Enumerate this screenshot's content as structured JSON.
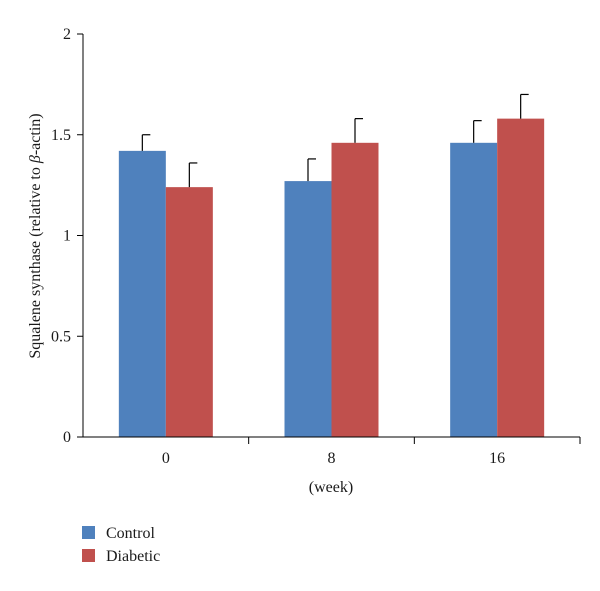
{
  "chart_data": {
    "type": "bar",
    "categories": [
      "0",
      "8",
      "16"
    ],
    "series": [
      {
        "name": "Control",
        "values": [
          1.42,
          1.27,
          1.46
        ],
        "errors": [
          0.08,
          0.11,
          0.11
        ],
        "color": "#4f81bd"
      },
      {
        "name": "Diabetic",
        "values": [
          1.24,
          1.46,
          1.58
        ],
        "errors": [
          0.12,
          0.12,
          0.12
        ],
        "color": "#c0504d"
      }
    ],
    "title": "",
    "xlabel": "(week)",
    "ylabel_parts": [
      "Squalene synthase (relative to ",
      "β",
      "-actin)"
    ],
    "ylim": [
      0,
      2
    ],
    "yticks": [
      0,
      0.5,
      1,
      1.5,
      2
    ],
    "ytick_labels": [
      "0",
      "0.5",
      "1",
      "1.5",
      "2"
    ],
    "grid": false,
    "legend_position": "bottom-left"
  }
}
